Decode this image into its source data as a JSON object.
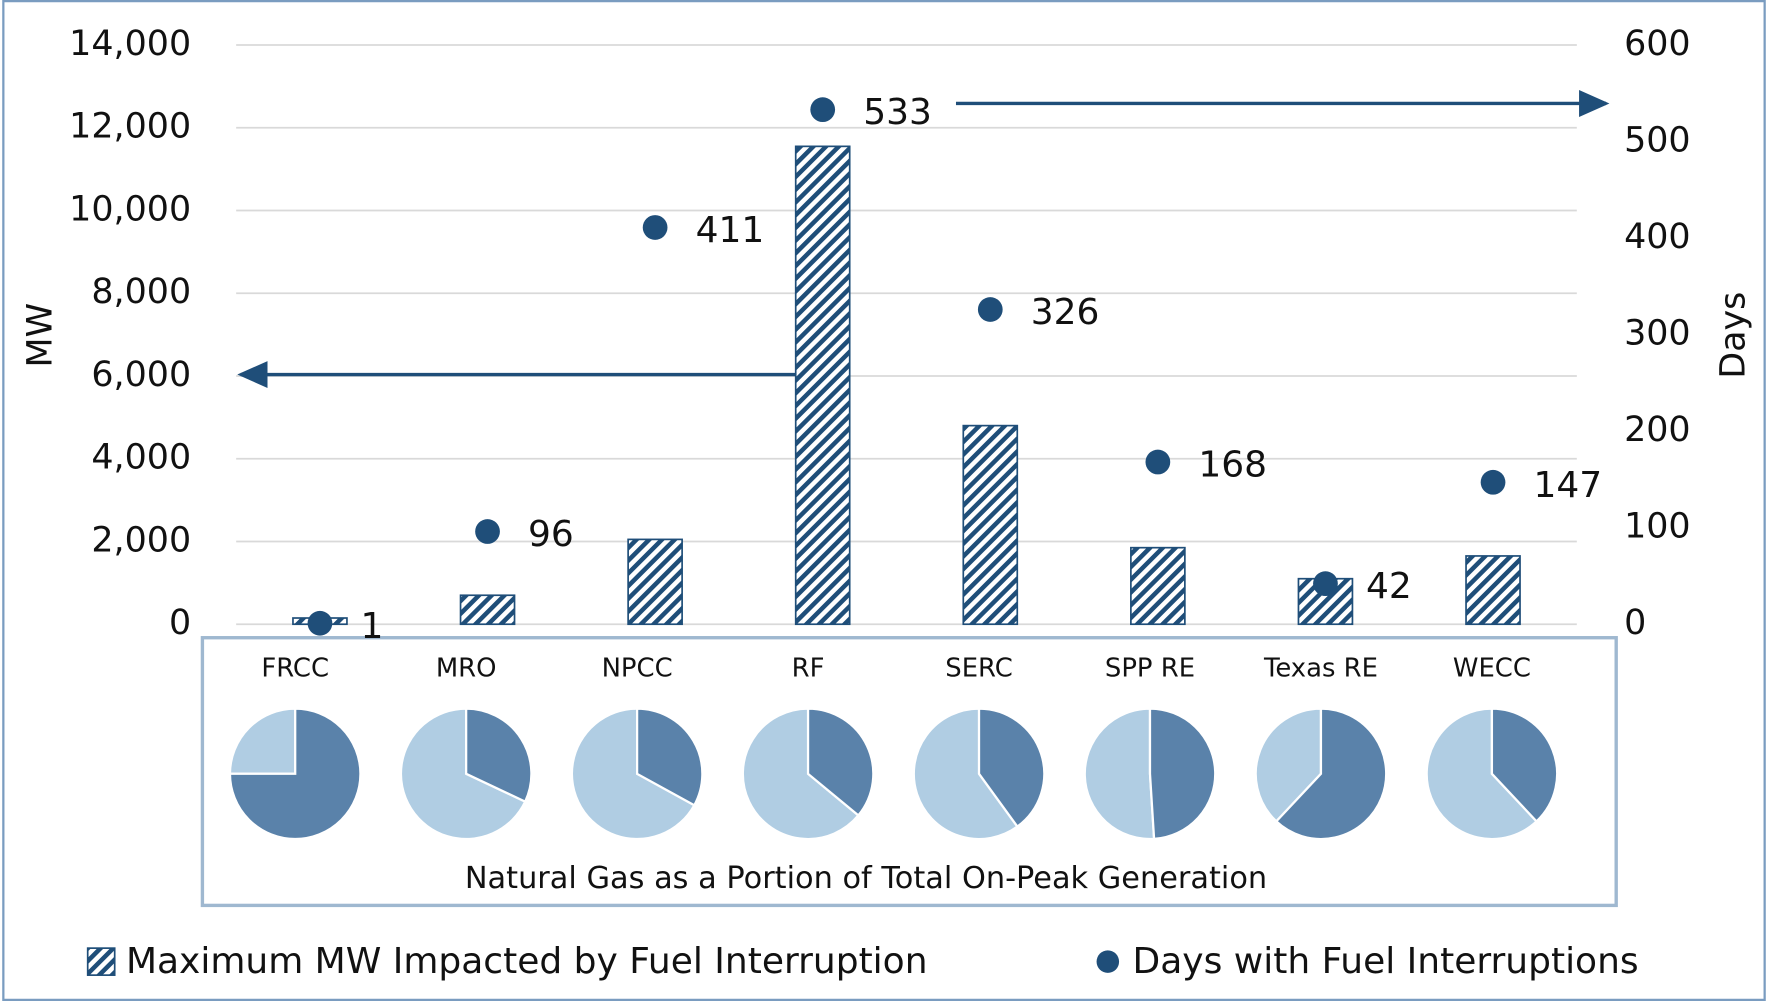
{
  "chart_data": {
    "type": "bar",
    "categories": [
      "FRCC",
      "MRO",
      "NPCC",
      "RF",
      "SERC",
      "SPP RE",
      "Texas RE",
      "WECC"
    ],
    "series": [
      {
        "name": "Maximum MW Impacted by Fuel Interruption",
        "color": "#1f4e79",
        "values": [
          150,
          700,
          2050,
          11550,
          4800,
          1850,
          1100,
          1650
        ]
      },
      {
        "name": "Days with Fuel Interruptions",
        "color": "#1f4e79",
        "axis": "y2",
        "values": [
          1,
          96,
          411,
          533,
          326,
          168,
          42,
          147
        ]
      }
    ],
    "y_label": "MW",
    "y2_label": "Days",
    "ylim": [
      0,
      14000
    ],
    "yticks": [
      0,
      {
        "value": 2000,
        "label": "2,000"
      },
      {
        "value": 4000,
        "label": "4,000"
      },
      {
        "value": 6000,
        "label": "6,000"
      },
      {
        "value": 8000,
        "label": "8,000"
      },
      {
        "value": 10000,
        "label": "10,000"
      },
      {
        "value": 12000,
        "label": "12,000"
      },
      {
        "value": 14000,
        "label": "14,000"
      }
    ],
    "y2lim": [
      0,
      600
    ],
    "y2ticks": [
      0,
      100,
      200,
      300,
      400,
      500,
      600
    ],
    "grid": true,
    "legend": "bottom",
    "inset": {
      "type": "pie",
      "title": "Natural Gas as a Portion of Total On-Peak Generation",
      "values": [
        75,
        32,
        33,
        36,
        40,
        49,
        62,
        38
      ],
      "colors": [
        "#5a82aa",
        "#b0cde3"
      ]
    }
  }
}
